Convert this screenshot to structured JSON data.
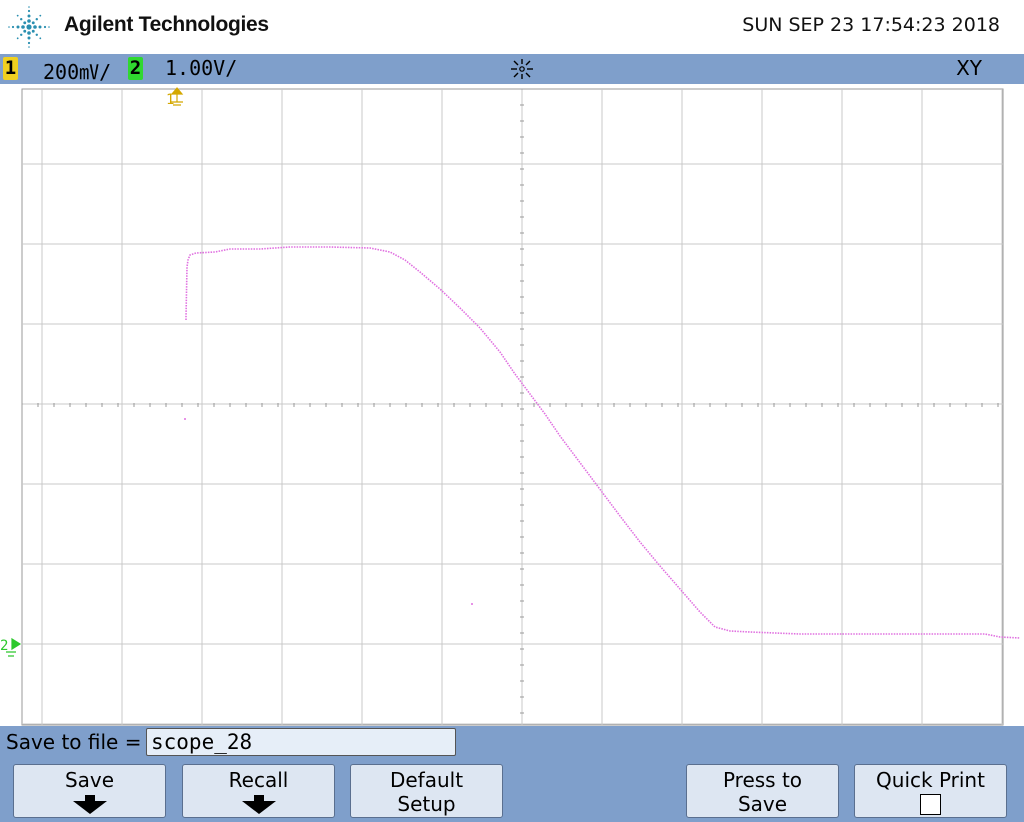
{
  "header": {
    "brand": "Agilent Technologies",
    "datetime": "SUN SEP 23 17:54:23 2018",
    "logo_icon": "agilent-spark-logo"
  },
  "status": {
    "ch1": {
      "number": "1",
      "scale": "200㎷/",
      "color": "#f0d020"
    },
    "ch2": {
      "number": "2",
      "scale": "1.00V/",
      "color": "#30d830"
    },
    "run_icon": "acquisition-sparkle-icon",
    "mode": "XY"
  },
  "screen": {
    "ch1_marker": "1",
    "ch2_marker": "2",
    "trace_color": "#e070e0",
    "grid_color": "#c8c8c8"
  },
  "file": {
    "label": "Save to file =",
    "filename": "scope_28"
  },
  "softkeys": {
    "save": "Save",
    "recall": "Recall",
    "default_line1": "Default",
    "default_line2": "Setup",
    "press_line1": "Press to",
    "press_line2": "Save",
    "quick_print": "Quick Print"
  }
}
